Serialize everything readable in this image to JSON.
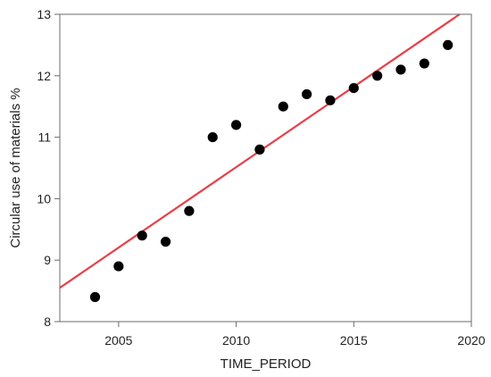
{
  "chart_data": {
    "type": "scatter",
    "xlabel": "TIME_PERIOD",
    "ylabel": "Circular use of materials %",
    "xlim": [
      2002.5,
      2020
    ],
    "ylim": [
      8,
      13
    ],
    "xticks": [
      2005,
      2010,
      2015,
      2020
    ],
    "yticks": [
      8,
      9,
      10,
      11,
      12,
      13
    ],
    "grid": false,
    "series": [
      {
        "x": [
          2004,
          2005,
          2006,
          2007,
          2008,
          2009,
          2010,
          2011,
          2012,
          2013,
          2014,
          2015,
          2016,
          2017,
          2018,
          2019
        ],
        "y": [
          8.4,
          8.9,
          9.4,
          9.3,
          9.8,
          11.0,
          11.2,
          10.8,
          11.5,
          11.7,
          11.6,
          11.8,
          12.0,
          12.1,
          12.2,
          12.5
        ],
        "color": "#000000"
      }
    ],
    "trendline": {
      "color": "#e8404a",
      "x": [
        2002.5,
        2019.5
      ],
      "y": [
        8.55,
        13.0
      ]
    }
  }
}
